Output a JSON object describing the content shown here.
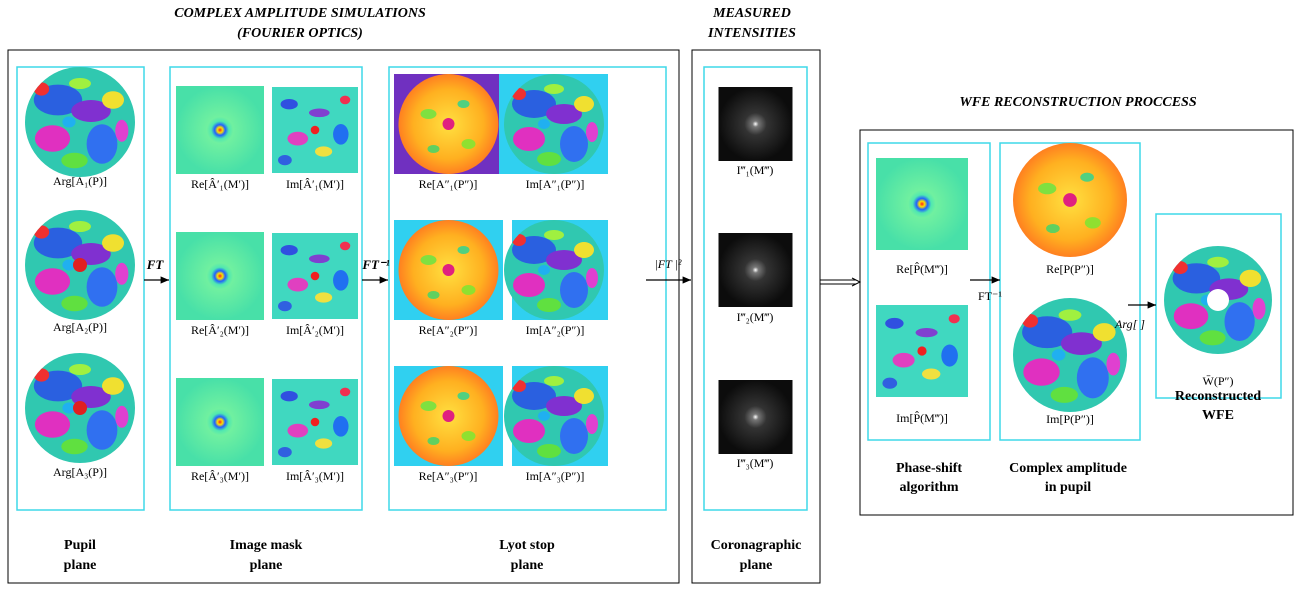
{
  "header": {
    "simulations_title": [
      "COMPLEX AMPLITUDE SIMULATIONS",
      "(FOURIER OPTICS)"
    ],
    "measured_title": [
      "MEASURED",
      "INTENSITIES"
    ],
    "reconstruction_title": "WFE RECONSTRUCTION PROCCESS"
  },
  "pupil": {
    "labels": [
      "Arg[A₁(P)]",
      "Arg[A₂(P)]",
      "Arg[A₃(P)]"
    ],
    "caption": [
      "Pupil",
      "plane"
    ]
  },
  "image_mask": {
    "labels": [
      [
        "Re[Â′₁(M′)]",
        "Im[Â′₁(M′)]"
      ],
      [
        "Re[Â′₂(M′)]",
        "Im[Â′₂(M′)]"
      ],
      [
        "Re[Â′₃(M′)]",
        "Im[Â′₃(M′)]"
      ]
    ],
    "caption": [
      "Image mask",
      "plane"
    ]
  },
  "lyot": {
    "labels": [
      [
        "Re[A″₁(P″)]",
        "Im[A″₁(P″)]"
      ],
      [
        "Re[A″₂(P″)]",
        "Im[A″₂(P″)]"
      ],
      [
        "Re[A″₃(P″)]",
        "Im[A″₃(P″)]"
      ]
    ],
    "caption": [
      "Lyot stop",
      "plane"
    ]
  },
  "coronagraphic": {
    "labels": [
      "I‴₁(M‴)",
      "I‴₂(M‴)",
      "I‴₃(M‴)"
    ],
    "caption": [
      "Coronagraphic",
      "plane"
    ]
  },
  "phase_shift": {
    "labels": [
      "Re[P̂(M‴)]",
      "Im[P̂(M‴)]"
    ],
    "caption": [
      "Phase-shift",
      "algorithm"
    ]
  },
  "complex_amplitude": {
    "labels": [
      "Re[P(P″)]",
      "Im[P(P″)]"
    ],
    "caption": [
      "Complex amplitude",
      "in pupil"
    ]
  },
  "reconstructed": {
    "label": "W̄(P″)",
    "caption": [
      "Reconstructed",
      "WFE"
    ]
  },
  "arrows": {
    "ft": "FT",
    "ift": "FT⁻¹",
    "modulus": "|FT |²",
    "ift_inner": "FT⁻¹",
    "arg": "Arg[ ]"
  }
}
